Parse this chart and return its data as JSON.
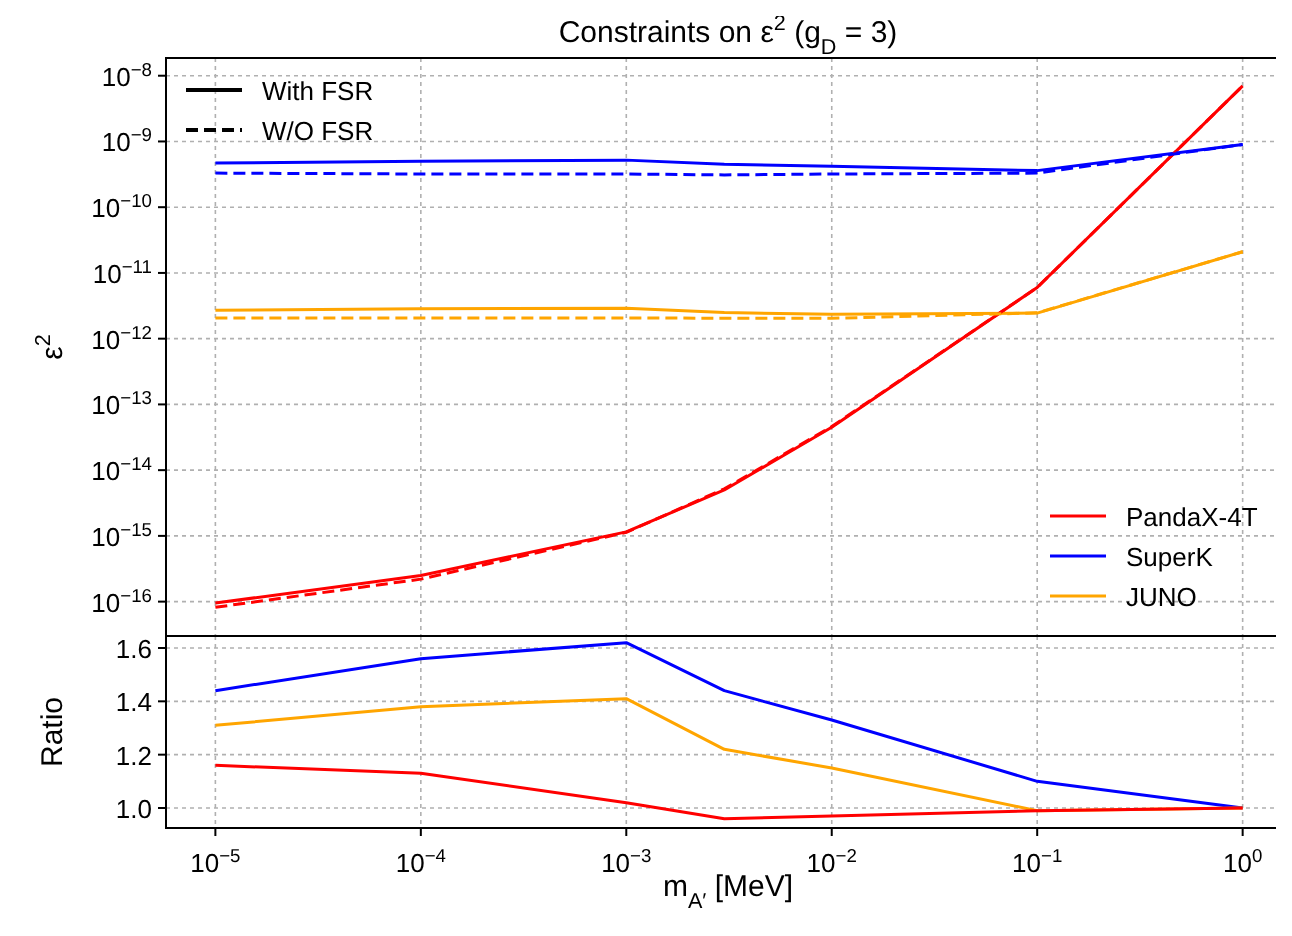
{
  "chart_data": [
    {
      "type": "line",
      "title": "Constraints on ε$^{2}$ (g$_{D}$ = 3)",
      "ylabel": "ε$^{2}$",
      "log": "xy",
      "grid": true,
      "legend": "bottom right",
      "tick_labels": "y",
      "xlim": [
        5.75e-06,
        1.7
      ],
      "xticks": [
        {
          "value": 1e-05,
          "label": null
        },
        {
          "value": 0.0001,
          "label": null
        },
        {
          "value": 0.001,
          "label": null
        },
        {
          "value": 0.01,
          "label": null
        },
        {
          "value": 0.1,
          "label": null
        },
        {
          "value": 1,
          "label": null
        }
      ],
      "ylim": [
        3e-17,
        1.86e-08
      ],
      "yticks": [
        {
          "value": 1e-16,
          "label": "10$^{−16}$"
        },
        {
          "value": 1e-15,
          "label": "10$^{−15}$"
        },
        {
          "value": 1e-14,
          "label": "10$^{−14}$"
        },
        {
          "value": 1e-13,
          "label": "10$^{−13}$"
        },
        {
          "value": 1e-12,
          "label": "10$^{−12}$"
        },
        {
          "value": 1e-11,
          "label": "10$^{−11}$"
        },
        {
          "value": 1e-10,
          "label": "10$^{−10}$"
        },
        {
          "value": 1e-09,
          "label": "10$^{−9}$"
        },
        {
          "value": 1e-08,
          "label": "10$^{−8}$"
        }
      ],
      "x": [
        1e-05,
        0.0001,
        0.001,
        0.003,
        0.01,
        0.1,
        1
      ],
      "annotations": [
        "With FSR",
        "W/O FSR"
      ],
      "series": [
        {
          "name": "PandaX-4T",
          "color": "#ff0000",
          "line_style": "solid",
          "values": [
            9.5e-17,
            2.5e-16,
            1.15e-15,
            5e-15,
            4.5e-14,
            6e-12,
            7e-09
          ]
        },
        {
          "name": "SuperK",
          "color": "#0000ff",
          "line_style": "solid",
          "values": [
            4.7e-10,
            5e-10,
            5.2e-10,
            4.5e-10,
            4.2e-10,
            3.6e-10,
            9e-10
          ]
        },
        {
          "name": "JUNO",
          "color": "#ffa500",
          "line_style": "solid",
          "values": [
            2.7e-12,
            2.85e-12,
            2.9e-12,
            2.5e-12,
            2.35e-12,
            2.45e-12,
            2.1e-11
          ]
        },
        {
          "color": "#ff0000",
          "line_style": "dashed",
          "values": [
            8.2e-17,
            2.2e-16,
            1.13e-15,
            5.2e-15,
            4.6e-14,
            6e-12,
            7e-09
          ]
        },
        {
          "color": "#0000ff",
          "line_style": "dashed",
          "values": [
            3.3e-10,
            3.2e-10,
            3.2e-10,
            3.1e-10,
            3.2e-10,
            3.3e-10,
            9e-10
          ]
        },
        {
          "color": "#ffa500",
          "line_style": "dashed",
          "values": [
            2.06e-12,
            2.07e-12,
            2.06e-12,
            2.05e-12,
            2.04e-12,
            2.47e-12,
            2.1e-11
          ]
        }
      ]
    },
    {
      "type": "line",
      "xlabel": "m$_{A′}$ [MeV]",
      "ylabel": "Ratio",
      "log": "x",
      "grid": true,
      "xlim": [
        5.75e-06,
        1.7
      ],
      "xticks": [
        {
          "value": 1e-05,
          "label": "10$^{−5}$"
        },
        {
          "value": 0.0001,
          "label": "10$^{−4}$"
        },
        {
          "value": 0.001,
          "label": "10$^{−3}$"
        },
        {
          "value": 0.01,
          "label": "10$^{−2}$"
        },
        {
          "value": 0.1,
          "label": "10$^{−1}$"
        },
        {
          "value": 1,
          "label": "10$^{0}$"
        }
      ],
      "ylim": [
        0.925,
        1.645
      ],
      "yticks": [
        {
          "value": 1,
          "label": "1.0"
        },
        1.2,
        1.4,
        1.6
      ],
      "x": [
        1e-05,
        0.0001,
        0.001,
        0.003,
        0.01,
        0.1,
        1
      ],
      "series": [
        {
          "color": "#0000ff",
          "values": [
            1.44,
            1.56,
            1.62,
            1.44,
            1.33,
            1.1,
            1.0
          ]
        },
        {
          "color": "#ffa500",
          "values": [
            1.31,
            1.38,
            1.41,
            1.22,
            1.15,
            0.99,
            1.0
          ]
        },
        {
          "color": "#ff0000",
          "values": [
            1.16,
            1.13,
            1.02,
            0.96,
            0.97,
            0.99,
            1.0
          ]
        }
      ]
    }
  ]
}
